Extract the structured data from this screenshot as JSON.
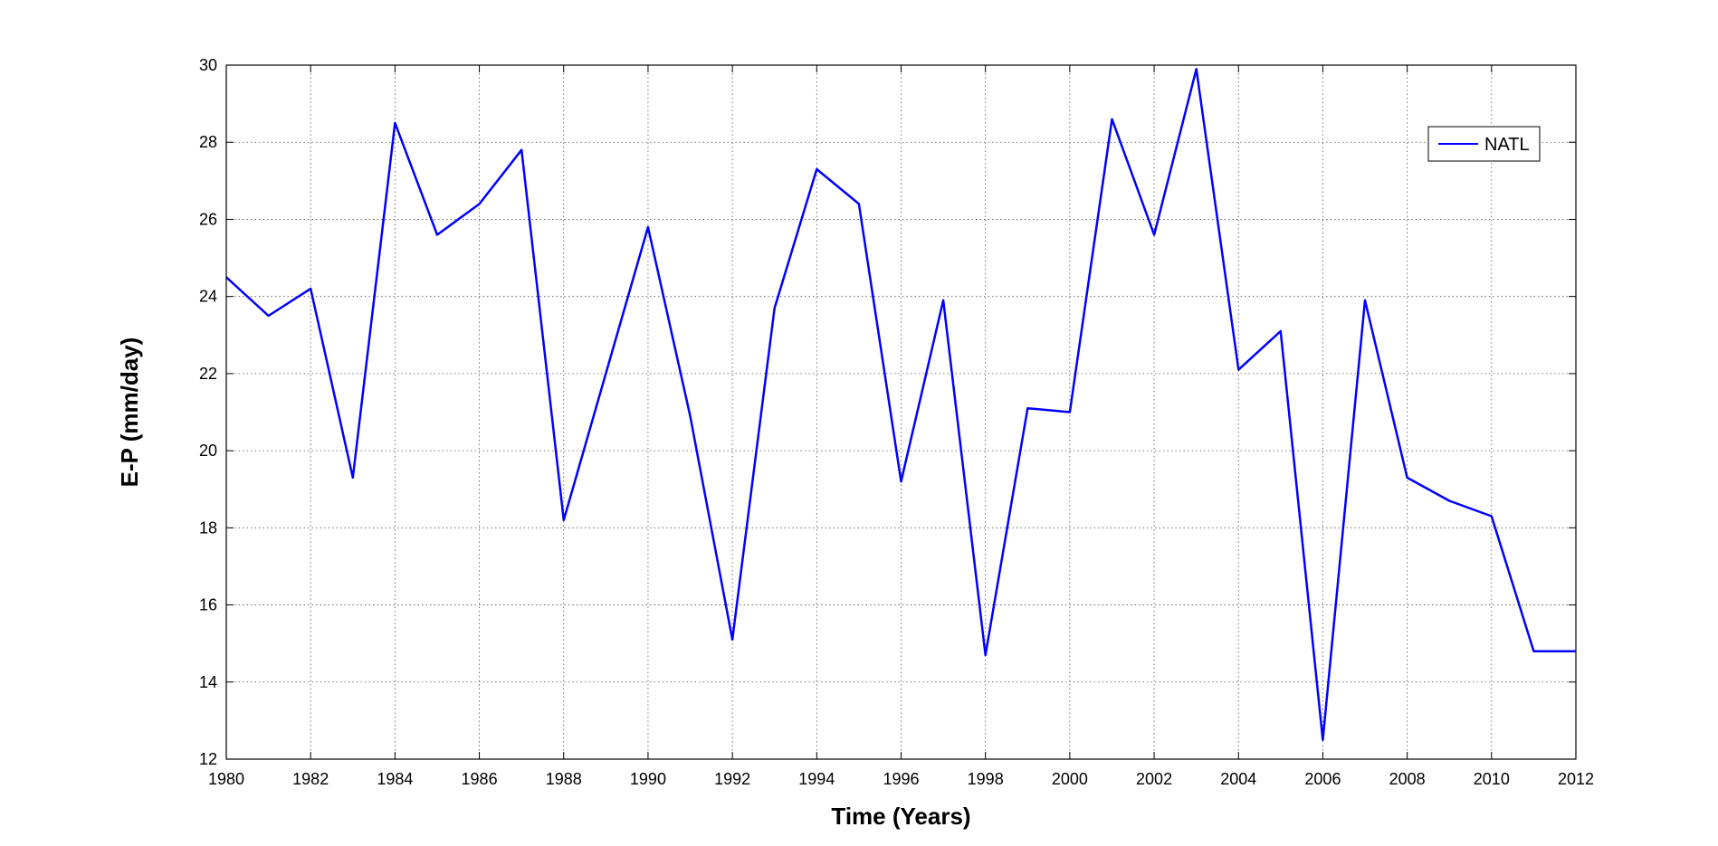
{
  "chart_data": {
    "type": "line",
    "title": "",
    "xlabel": "Time (Years)",
    "ylabel": "E-P (mm/day)",
    "xlim": [
      1980,
      2012
    ],
    "ylim": [
      12,
      30
    ],
    "x_ticks": [
      1980,
      1982,
      1984,
      1986,
      1988,
      1990,
      1992,
      1994,
      1996,
      1998,
      2000,
      2002,
      2004,
      2006,
      2008,
      2010,
      2012
    ],
    "y_ticks": [
      12,
      14,
      16,
      18,
      20,
      22,
      24,
      26,
      28,
      30
    ],
    "grid": true,
    "legend_position": "top-right",
    "series": [
      {
        "name": "NATL",
        "color": "#0000ff",
        "x": [
          1980,
          1981,
          1982,
          1983,
          1984,
          1985,
          1986,
          1987,
          1988,
          1989,
          1990,
          1991,
          1992,
          1993,
          1994,
          1995,
          1996,
          1997,
          1998,
          1999,
          2000,
          2001,
          2002,
          2003,
          2004,
          2005,
          2006,
          2007,
          2008,
          2009,
          2010,
          2011,
          2012
        ],
        "y": [
          24.5,
          23.5,
          24.2,
          19.3,
          28.5,
          25.6,
          26.4,
          27.8,
          18.2,
          22.0,
          25.8,
          20.9,
          15.1,
          23.7,
          27.3,
          26.4,
          19.2,
          23.9,
          14.7,
          21.1,
          21.0,
          28.6,
          25.6,
          29.9,
          22.1,
          23.1,
          12.5,
          23.9,
          19.3,
          18.7,
          18.3,
          14.8,
          14.8
        ]
      }
    ]
  }
}
